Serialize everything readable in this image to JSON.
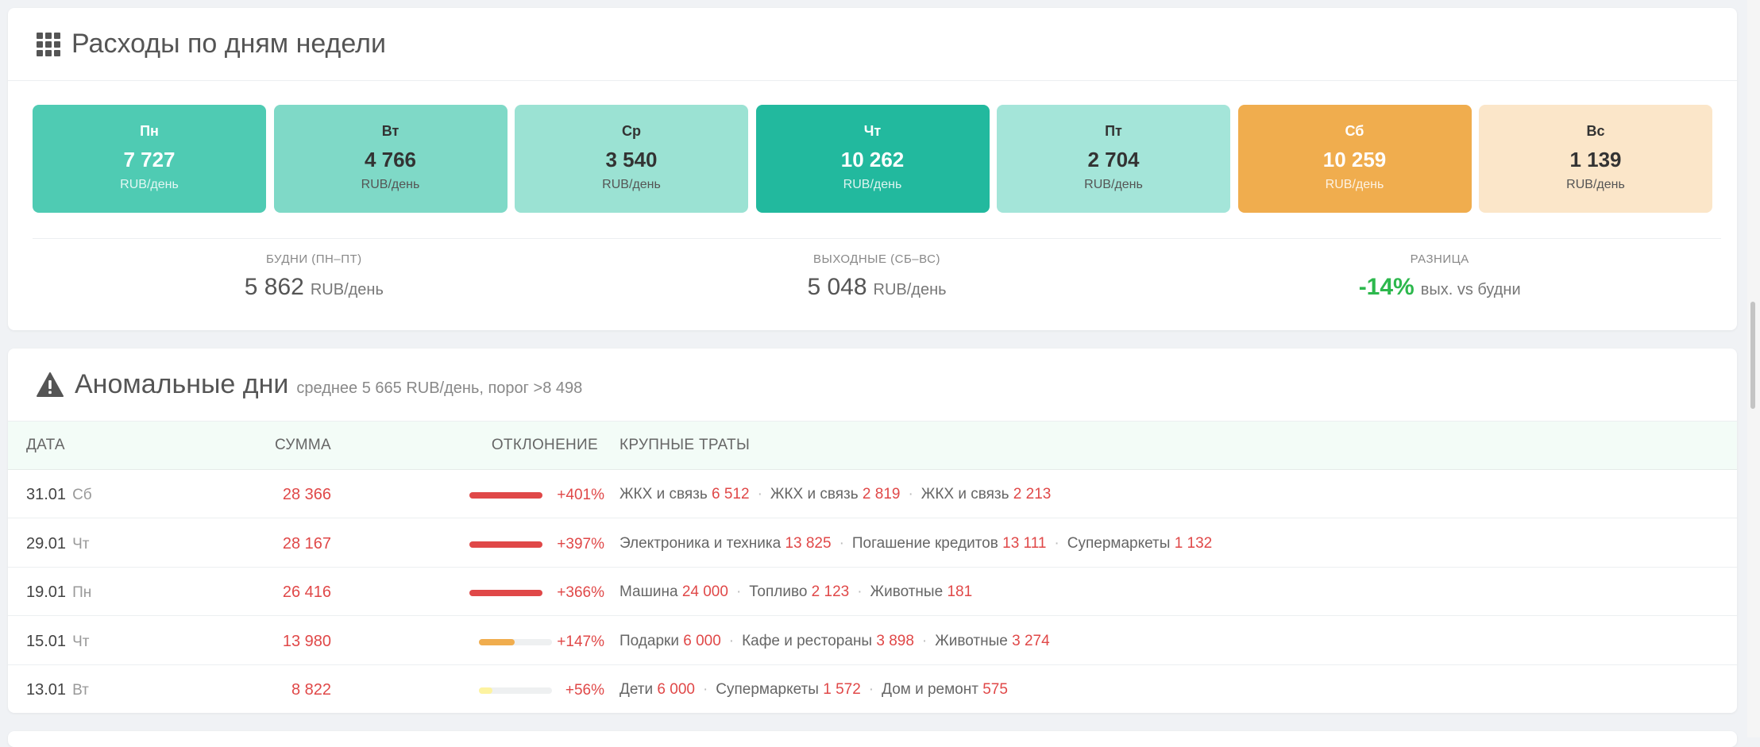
{
  "weekdays_card": {
    "title": "Расходы по дням недели",
    "icon": "grid-icon",
    "days": [
      {
        "name": "Пн",
        "value": "7 727",
        "unit": "RUB/день",
        "bg": "#4fcbb3",
        "tone": "dark"
      },
      {
        "name": "Вт",
        "value": "4 766",
        "unit": "RUB/день",
        "bg": "#7fd9c7",
        "tone": "light"
      },
      {
        "name": "Ср",
        "value": "3 540",
        "unit": "RUB/день",
        "bg": "#9be2d3",
        "tone": "light"
      },
      {
        "name": "Чт",
        "value": "10 262",
        "unit": "RUB/день",
        "bg": "#22b99e",
        "tone": "dark"
      },
      {
        "name": "Пт",
        "value": "2 704",
        "unit": "RUB/день",
        "bg": "#a4e5d9",
        "tone": "light"
      },
      {
        "name": "Сб",
        "value": "10 259",
        "unit": "RUB/день",
        "bg": "#f0ad4e",
        "tone": "dark"
      },
      {
        "name": "Вс",
        "value": "1 139",
        "unit": "RUB/день",
        "bg": "#fbe6c9",
        "tone": "light"
      }
    ],
    "summary": [
      {
        "label": "БУДНИ (ПН–ПТ)",
        "value": "5 862",
        "unit": "RUB/день",
        "accent": "normal"
      },
      {
        "label": "ВЫХОДНЫЕ (СБ–ВС)",
        "value": "5 048",
        "unit": "RUB/день",
        "accent": "normal"
      },
      {
        "label": "РАЗНИЦА",
        "value": "-14%",
        "unit": "вых. vs будни",
        "accent": "green"
      }
    ],
    "colors": {
      "positive": "#2db84d"
    }
  },
  "anomalies_card": {
    "title": "Аномальные дни",
    "subtitle": "среднее 5 665 RUB/день, порог >8 498",
    "icon": "warning-icon",
    "columns": {
      "date": "ДАТА",
      "sum": "СУММА",
      "deviation": "ОТКЛОНЕНИЕ",
      "items": "КРУПНЫЕ ТРАТЫ"
    },
    "rows": [
      {
        "date": "31.01",
        "weekday": "Сб",
        "sum": "28 366",
        "deviation": "+401%",
        "bar_fraction": 1.0,
        "bar_color": "#e04848",
        "items": [
          {
            "name": "ЖКХ и связь",
            "amount": "6 512"
          },
          {
            "name": "ЖКХ и связь",
            "amount": "2 819"
          },
          {
            "name": "ЖКХ и связь",
            "amount": "2 213"
          }
        ]
      },
      {
        "date": "29.01",
        "weekday": "Чт",
        "sum": "28 167",
        "deviation": "+397%",
        "bar_fraction": 1.0,
        "bar_color": "#e04848",
        "items": [
          {
            "name": "Электроника и техника",
            "amount": "13 825"
          },
          {
            "name": "Погашение кредитов",
            "amount": "13 111"
          },
          {
            "name": "Супермаркеты",
            "amount": "1 132"
          }
        ]
      },
      {
        "date": "19.01",
        "weekday": "Пн",
        "sum": "26 416",
        "deviation": "+366%",
        "bar_fraction": 1.0,
        "bar_color": "#e04848",
        "items": [
          {
            "name": "Машина",
            "amount": "24 000"
          },
          {
            "name": "Топливо",
            "amount": "2 123"
          },
          {
            "name": "Животные",
            "amount": "181"
          }
        ]
      },
      {
        "date": "15.01",
        "weekday": "Чт",
        "sum": "13 980",
        "deviation": "+147%",
        "bar_fraction": 0.49,
        "bar_color": "#f0ad4e",
        "items": [
          {
            "name": "Подарки",
            "amount": "6 000"
          },
          {
            "name": "Кафе и рестораны",
            "amount": "3 898"
          },
          {
            "name": "Животные",
            "amount": "3 274"
          }
        ]
      },
      {
        "date": "13.01",
        "weekday": "Вт",
        "sum": "8 822",
        "deviation": "+56%",
        "bar_fraction": 0.19,
        "bar_color": "#fdf3a0",
        "items": [
          {
            "name": "Дети",
            "amount": "6 000"
          },
          {
            "name": "Супермаркеты",
            "amount": "1 572"
          },
          {
            "name": "Дом и ремонт",
            "amount": "575"
          }
        ]
      }
    ],
    "colors": {
      "amount": "#e04848"
    }
  }
}
